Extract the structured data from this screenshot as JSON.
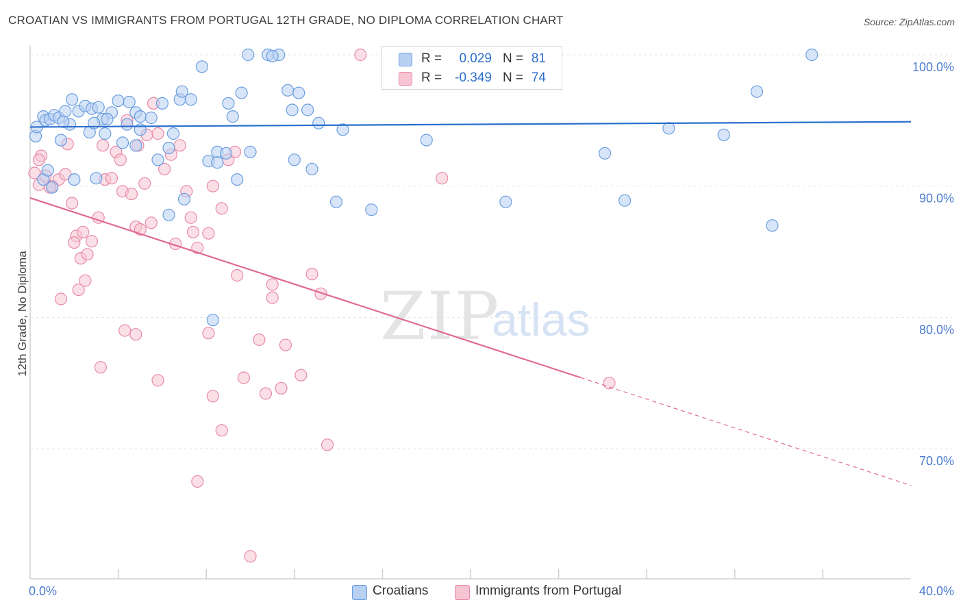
{
  "title": "CROATIAN VS IMMIGRANTS FROM PORTUGAL 12TH GRADE, NO DIPLOMA CORRELATION CHART",
  "source": "Source: ZipAtlas.com",
  "watermark": {
    "zip": "ZIP",
    "atlas": "atlas"
  },
  "colors": {
    "blue_fill": "#b8d0f2",
    "blue_stroke": "#6a9ee0",
    "blue_line": "#2b6fcc",
    "pink_fill": "#f7c4d4",
    "pink_stroke": "#e88aa8",
    "pink_line": "#e06a92",
    "axis_text": "#4a7bd0",
    "grid": "#e6e6e6"
  },
  "legend_top": {
    "rows": [
      {
        "r_label": "R =",
        "r_value": "0.029",
        "n_label": "N =",
        "n_value": "81",
        "swatch": "blue"
      },
      {
        "r_label": "R =",
        "r_value": "-0.349",
        "n_label": "N =",
        "n_value": "74",
        "swatch": "pink"
      }
    ]
  },
  "legend_bottom": [
    {
      "label": "Croatians",
      "swatch": "blue"
    },
    {
      "label": "Immigrants from Portugal",
      "swatch": "pink"
    }
  ],
  "chart_data": {
    "type": "scatter",
    "title": "CROATIAN VS IMMIGRANTS FROM PORTUGAL 12TH GRADE, NO DIPLOMA CORRELATION CHART",
    "xlabel": "",
    "ylabel": "12th Grade, No Diploma",
    "xlim": [
      0,
      40
    ],
    "ylim": [
      60,
      102
    ],
    "x_tick_labels": [
      "0.0%",
      "40.0%"
    ],
    "y_ticks": [
      70,
      80,
      90,
      100
    ],
    "y_tick_labels": [
      "70.0%",
      "80.0%",
      "90.0%",
      "100.0%"
    ],
    "grid": true,
    "legend": "top-center",
    "series": [
      {
        "name": "Croatians",
        "color": "blue",
        "r": 0.029,
        "n": 81,
        "trend": {
          "x": [
            0,
            40
          ],
          "y": [
            94.5,
            94.9
          ],
          "dashed_from": null
        },
        "points": [
          [
            0.25,
            93.8
          ],
          [
            0.3,
            94.5
          ],
          [
            0.6,
            95.3
          ],
          [
            0.7,
            95.0
          ],
          [
            0.9,
            95.1
          ],
          [
            1.1,
            95.4
          ],
          [
            1.3,
            95.2
          ],
          [
            1.4,
            93.5
          ],
          [
            1.6,
            95.7
          ],
          [
            1.9,
            96.6
          ],
          [
            1.8,
            94.7
          ],
          [
            2.2,
            95.7
          ],
          [
            2.5,
            96.1
          ],
          [
            2.7,
            94.1
          ],
          [
            2.8,
            95.9
          ],
          [
            3.1,
            96.0
          ],
          [
            3.3,
            95.1
          ],
          [
            3.4,
            94.0
          ],
          [
            3.7,
            95.6
          ],
          [
            4.0,
            96.5
          ],
          [
            4.4,
            94.7
          ],
          [
            4.5,
            96.4
          ],
          [
            4.8,
            95.6
          ],
          [
            5.0,
            95.3
          ],
          [
            5.0,
            94.3
          ],
          [
            5.5,
            95.2
          ],
          [
            4.8,
            93.1
          ],
          [
            5.8,
            92.0
          ],
          [
            6.3,
            92.9
          ],
          [
            6.8,
            96.6
          ],
          [
            6.9,
            97.2
          ],
          [
            7.3,
            96.6
          ],
          [
            7.0,
            89.0
          ],
          [
            8.1,
            91.9
          ],
          [
            8.5,
            92.6
          ],
          [
            8.5,
            91.8
          ],
          [
            9.2,
            95.3
          ],
          [
            9.4,
            90.5
          ],
          [
            9.6,
            97.1
          ],
          [
            9.9,
            100.0
          ],
          [
            10.8,
            100.0
          ],
          [
            11.3,
            100.0
          ],
          [
            11.7,
            97.3
          ],
          [
            12.2,
            97.1
          ],
          [
            12.6,
            95.8
          ],
          [
            12.8,
            91.3
          ],
          [
            13.1,
            94.8
          ],
          [
            14.2,
            94.3
          ],
          [
            15.5,
            88.2
          ],
          [
            17.3,
            100.0
          ],
          [
            17.5,
            98.0
          ],
          [
            18.0,
            93.5
          ],
          [
            21.6,
            88.8
          ],
          [
            26.1,
            92.5
          ],
          [
            27.0,
            88.9
          ],
          [
            29.0,
            94.4
          ],
          [
            33.0,
            97.2
          ],
          [
            35.5,
            100.0
          ],
          [
            31.5,
            93.9
          ],
          [
            33.7,
            87.0
          ],
          [
            8.3,
            79.8
          ],
          [
            6.3,
            87.8
          ],
          [
            3.0,
            90.6
          ],
          [
            2.0,
            90.5
          ],
          [
            1.0,
            89.9
          ],
          [
            0.6,
            90.5
          ],
          [
            0.8,
            91.2
          ],
          [
            4.2,
            93.3
          ],
          [
            9.0,
            96.3
          ],
          [
            7.8,
            99.1
          ],
          [
            11.0,
            99.9
          ],
          [
            11.9,
            95.8
          ],
          [
            1.5,
            94.9
          ],
          [
            2.9,
            94.8
          ],
          [
            3.5,
            95.1
          ],
          [
            6.0,
            96.3
          ],
          [
            13.9,
            88.8
          ],
          [
            10.0,
            92.6
          ],
          [
            12.0,
            92.0
          ],
          [
            6.5,
            94.0
          ],
          [
            8.9,
            92.5
          ]
        ]
      },
      {
        "name": "Immigrants from Portugal",
        "color": "pink",
        "r": -0.349,
        "n": 74,
        "trend": {
          "x": [
            0,
            40
          ],
          "y": [
            89.1,
            67.2
          ],
          "dashed_from": 25
        },
        "points": [
          [
            0.2,
            91.0
          ],
          [
            0.4,
            90.1
          ],
          [
            0.5,
            92.3
          ],
          [
            0.7,
            90.8
          ],
          [
            1.0,
            90.0
          ],
          [
            1.3,
            90.5
          ],
          [
            1.6,
            90.9
          ],
          [
            1.7,
            93.2
          ],
          [
            1.9,
            88.7
          ],
          [
            2.1,
            86.2
          ],
          [
            2.4,
            86.5
          ],
          [
            2.0,
            85.7
          ],
          [
            2.3,
            84.5
          ],
          [
            2.6,
            84.8
          ],
          [
            2.2,
            82.1
          ],
          [
            2.5,
            82.8
          ],
          [
            1.4,
            81.4
          ],
          [
            2.8,
            85.8
          ],
          [
            3.1,
            87.6
          ],
          [
            3.4,
            90.5
          ],
          [
            3.7,
            90.6
          ],
          [
            3.3,
            93.1
          ],
          [
            3.9,
            92.6
          ],
          [
            4.1,
            92.0
          ],
          [
            4.4,
            95.0
          ],
          [
            4.2,
            89.6
          ],
          [
            4.6,
            89.4
          ],
          [
            4.9,
            93.1
          ],
          [
            4.8,
            86.9
          ],
          [
            5.0,
            86.7
          ],
          [
            5.2,
            90.2
          ],
          [
            5.5,
            87.2
          ],
          [
            5.3,
            93.9
          ],
          [
            5.6,
            96.3
          ],
          [
            5.8,
            94.0
          ],
          [
            6.1,
            91.3
          ],
          [
            6.4,
            92.4
          ],
          [
            6.6,
            85.6
          ],
          [
            6.8,
            93.1
          ],
          [
            7.1,
            89.6
          ],
          [
            7.3,
            87.6
          ],
          [
            7.4,
            86.5
          ],
          [
            7.6,
            85.3
          ],
          [
            8.1,
            86.4
          ],
          [
            8.3,
            90.0
          ],
          [
            8.7,
            88.3
          ],
          [
            9.0,
            92.0
          ],
          [
            9.3,
            92.6
          ],
          [
            9.4,
            83.2
          ],
          [
            4.8,
            78.7
          ],
          [
            3.2,
            76.2
          ],
          [
            5.8,
            75.2
          ],
          [
            8.1,
            78.8
          ],
          [
            8.3,
            74.0
          ],
          [
            8.7,
            71.4
          ],
          [
            9.7,
            75.4
          ],
          [
            10.7,
            74.2
          ],
          [
            10.4,
            78.3
          ],
          [
            11.0,
            81.5
          ],
          [
            11.4,
            74.6
          ],
          [
            11.6,
            77.9
          ],
          [
            12.3,
            75.6
          ],
          [
            12.8,
            83.3
          ],
          [
            13.2,
            81.8
          ],
          [
            13.5,
            70.3
          ],
          [
            15.0,
            100.0
          ],
          [
            7.6,
            67.5
          ],
          [
            10.0,
            61.8
          ],
          [
            18.7,
            90.6
          ],
          [
            26.3,
            75.0
          ],
          [
            11.0,
            82.5
          ],
          [
            4.3,
            79.0
          ],
          [
            0.4,
            92.0
          ],
          [
            0.9,
            89.9
          ]
        ]
      }
    ]
  }
}
